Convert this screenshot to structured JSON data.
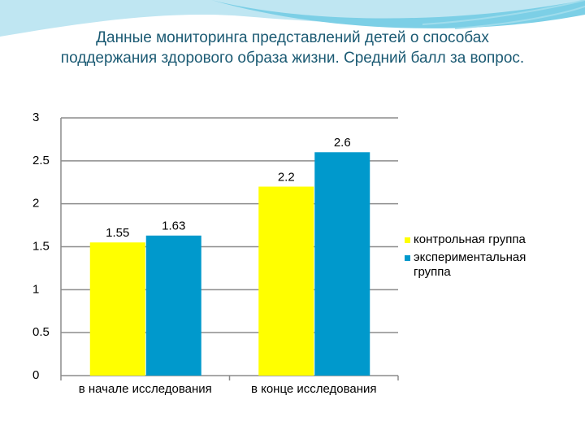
{
  "chart_data": {
    "type": "bar",
    "title": "Данные мониторинга представлений детей о способах поддержания здорового образа жизни. Средний балл за вопрос.",
    "categories": [
      "в начале исследования",
      "в конце исследования"
    ],
    "series": [
      {
        "name": "контрольная группа",
        "color": "#ffff00",
        "values": [
          1.55,
          2.2
        ]
      },
      {
        "name": "экспериментальная группа",
        "color": "#0099cc",
        "values": [
          1.63,
          2.6
        ]
      }
    ],
    "ylim": [
      0,
      3
    ],
    "yticks": [
      0,
      0.5,
      1,
      1.5,
      2,
      2.5,
      3
    ],
    "grid": true,
    "legend": "right"
  }
}
